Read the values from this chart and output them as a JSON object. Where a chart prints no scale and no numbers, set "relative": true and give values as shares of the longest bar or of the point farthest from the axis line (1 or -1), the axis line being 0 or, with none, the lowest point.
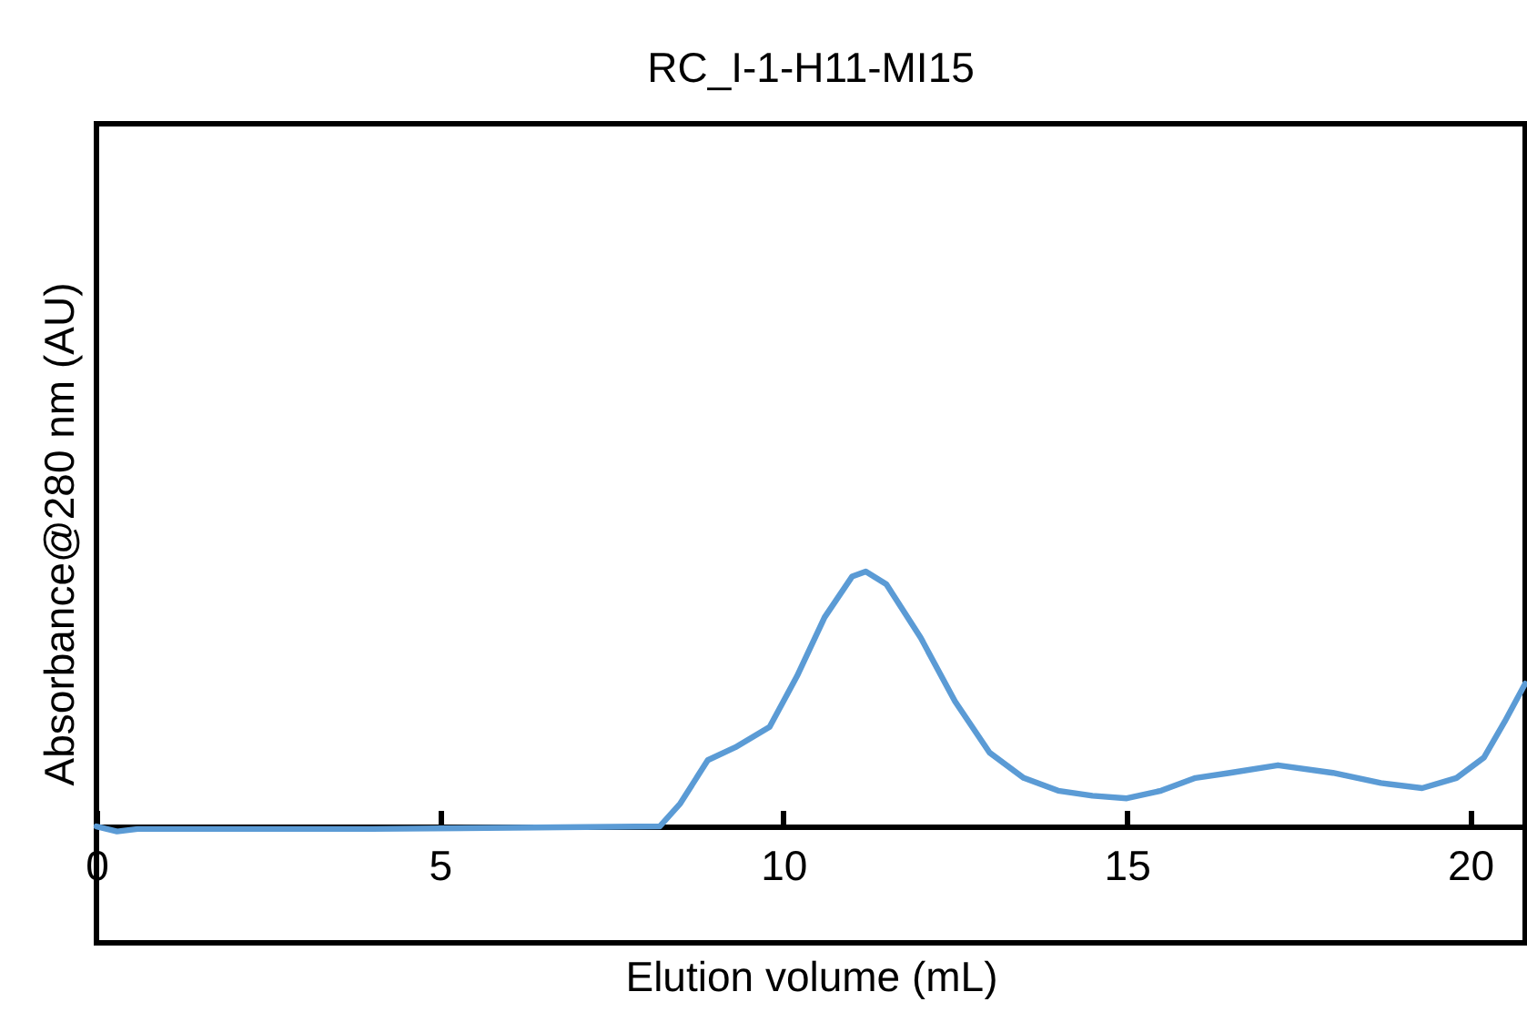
{
  "chart_data": {
    "type": "line",
    "title": "RC_I-1-H11-MI15",
    "xlabel": "Elution volume (mL)",
    "ylabel": "Absorbance@280 nm (AU)",
    "relative": true,
    "xlim": [
      0,
      20.8
    ],
    "xticks": [
      0,
      5,
      10,
      15,
      20
    ],
    "grid": false,
    "legend": false,
    "marker": "none",
    "line_style": "solid",
    "x": [
      0,
      0.3,
      0.6,
      4,
      8.2,
      8.5,
      8.9,
      9.3,
      9.8,
      10.2,
      10.6,
      11.0,
      11.2,
      11.5,
      12.0,
      12.5,
      13.0,
      13.5,
      14.0,
      14.5,
      15.0,
      15.5,
      16.0,
      16.5,
      17.2,
      18.0,
      18.7,
      19.3,
      19.8,
      20.2,
      20.5,
      20.8
    ],
    "series": [
      {
        "color": "#5b9bd5",
        "values": [
          0,
          -0.02,
          -0.01,
          -0.01,
          0,
          0.09,
          0.26,
          0.31,
          0.39,
          0.59,
          0.82,
          0.98,
          1,
          0.95,
          0.74,
          0.49,
          0.29,
          0.19,
          0.14,
          0.12,
          0.11,
          0.14,
          0.19,
          0.21,
          0.24,
          0.21,
          0.17,
          0.15,
          0.19,
          0.27,
          0.41,
          0.56
        ]
      }
    ]
  }
}
